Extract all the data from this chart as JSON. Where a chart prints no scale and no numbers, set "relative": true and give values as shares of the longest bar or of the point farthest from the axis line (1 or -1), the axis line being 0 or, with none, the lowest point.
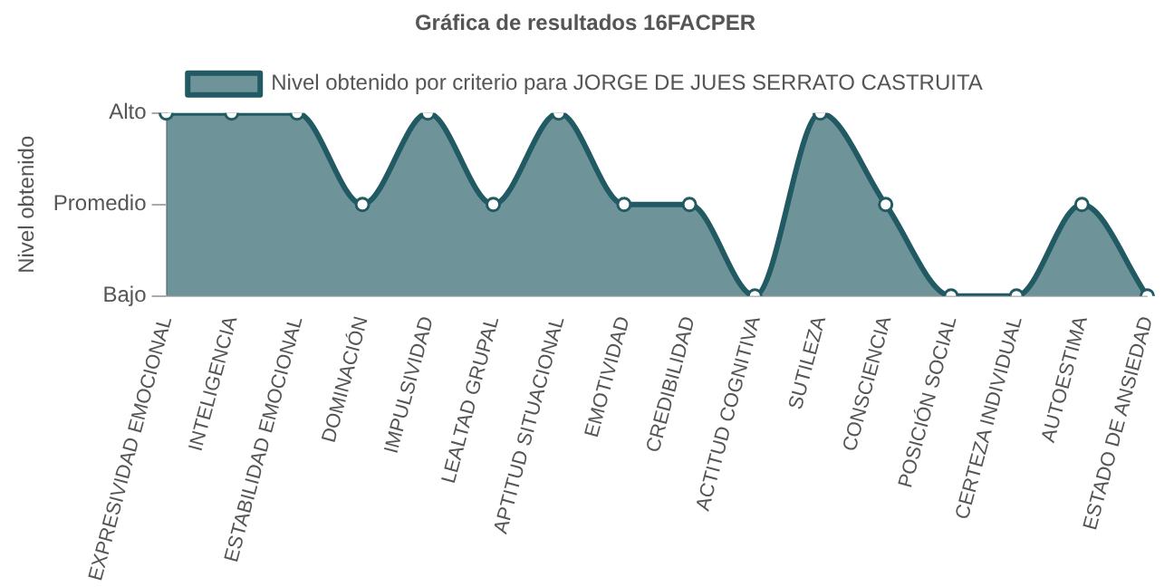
{
  "chart_data": {
    "type": "area",
    "title": "Gráfica de resultados 16FACPER",
    "ylabel": "Nivel obtenido",
    "categories": [
      "EXPRESIVIDAD EMOCIONAL",
      "INTELIGENCIA",
      "ESTABILIDAD EMOCIONAL",
      "DOMINACIÓN",
      "IMPULSIVIDAD",
      "LEALTAD GRUPAL",
      "APTITUD SITUACIONAL",
      "EMOTIVIDAD",
      "CREDIBILIDAD",
      "ACTITUD COGNITIVA",
      "SUTILEZA",
      "CONSCIENCIA",
      "POSICIÓN SOCIAL",
      "CERTEZA INDIVIDUAL",
      "AUTOESTIMA",
      "ESTADO DE ANSIEDAD"
    ],
    "series": [
      {
        "name": "Nivel obtenido por criterio para JORGE DE JUES SERRATO CASTRUITA",
        "color": "#215a63",
        "values": [
          1,
          1,
          1,
          0.5,
          1,
          0.5,
          1,
          0.5,
          0.5,
          0,
          1,
          0.5,
          0,
          0,
          0.5,
          0
        ]
      }
    ],
    "relative": true,
    "annotations": [
      "Alto",
      "Promedio",
      "Bajo"
    ],
    "grid": false,
    "legend": "top",
    "marker": "circle",
    "line_style": "solid"
  }
}
